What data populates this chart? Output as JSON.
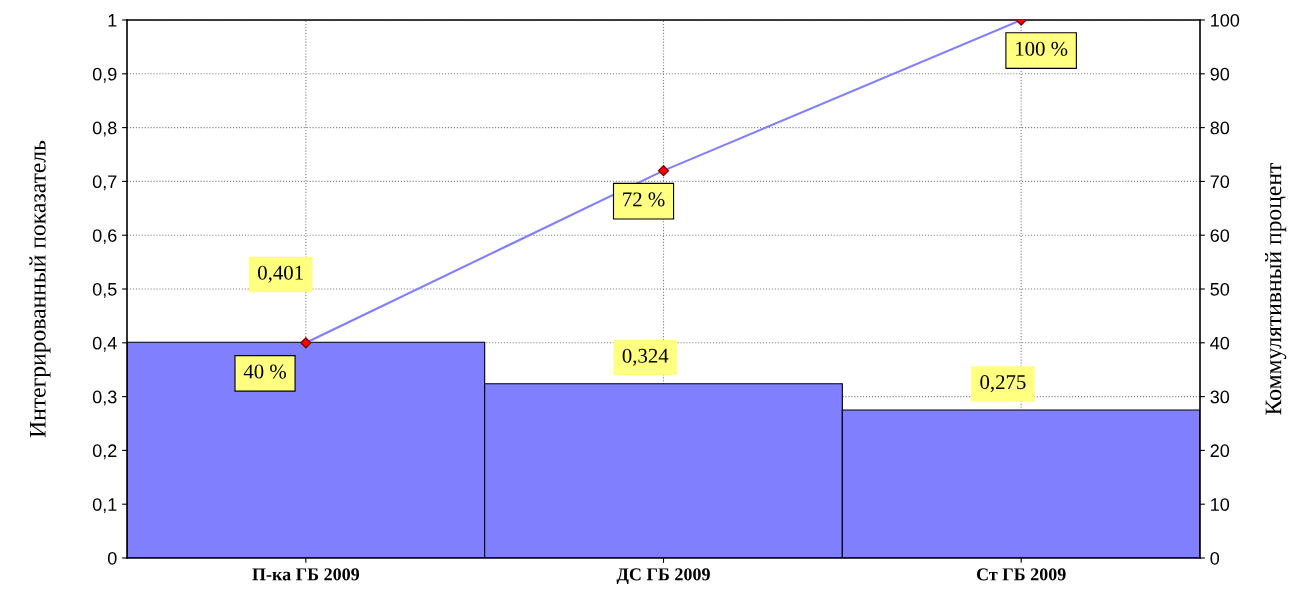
{
  "chart_data": {
    "type": "bar",
    "categories": [
      "П-ка ГБ 2009",
      "ДС ГБ 2009",
      "Ст ГБ 2009"
    ],
    "ylabel": "Интегрированный показатель",
    "y2label": "Коммулятивный процент",
    "series": [
      {
        "color": "#8080ff",
        "values": [
          0.401,
          0.324,
          0.275
        ],
        "value_labels": [
          "0,401",
          "0,324",
          "0,275"
        ]
      },
      {
        "type": "line",
        "axis": "y2",
        "color": "#8080ff",
        "marker": "diamond",
        "values": [
          40,
          72,
          100
        ],
        "value_labels": [
          "40 %",
          "72 %",
          "100 %"
        ]
      }
    ],
    "ylim": [
      0,
      1
    ],
    "yticks": [
      0,
      {
        "value": 0.1,
        "label": "0,1"
      },
      {
        "value": 0.2,
        "label": "0,2"
      },
      {
        "value": 0.3,
        "label": "0,3"
      },
      {
        "value": 0.4,
        "label": "0,4"
      },
      {
        "value": 0.5,
        "label": "0,5"
      },
      {
        "value": 0.6,
        "label": "0,6"
      },
      {
        "value": 0.7,
        "label": "0,7"
      },
      {
        "value": 0.8,
        "label": "0,8"
      },
      {
        "value": 0.9,
        "label": "0,9"
      },
      1
    ],
    "y2lim": [
      0,
      100
    ],
    "y2ticks": [
      0,
      10,
      20,
      30,
      40,
      50,
      60,
      70,
      80,
      90,
      100
    ],
    "grid": true,
    "legend": false
  }
}
